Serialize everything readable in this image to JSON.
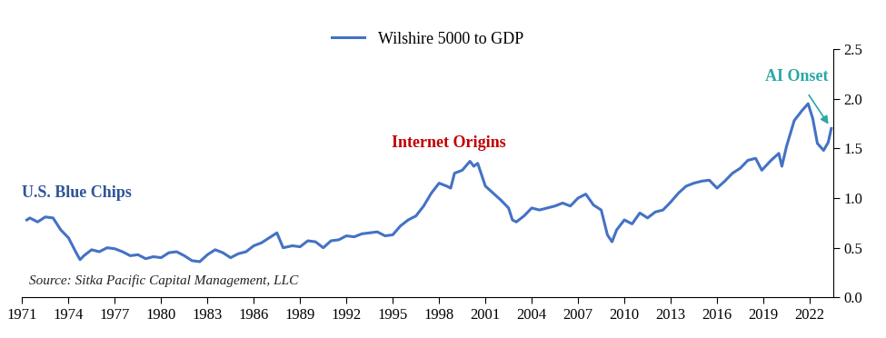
{
  "chart_data": {
    "type": "line",
    "annotations": [
      "U.S. Blue Chips",
      "Internet Origins",
      "AI Onset"
    ],
    "source": "Source: Sitka Pacific Capital Management, LLC",
    "x": [
      1971.3,
      1971.5,
      1972.0,
      1972.5,
      1973.0,
      1973.5,
      1974.0,
      1974.5,
      1974.75,
      1975.0,
      1975.5,
      1976.0,
      1976.5,
      1977.0,
      1977.5,
      1978.0,
      1978.5,
      1979.0,
      1979.5,
      1980.0,
      1980.5,
      1981.0,
      1981.5,
      1982.0,
      1982.5,
      1983.0,
      1983.5,
      1984.0,
      1984.5,
      1985.0,
      1985.5,
      1986.0,
      1986.5,
      1987.0,
      1987.5,
      1987.9,
      1988.5,
      1989.0,
      1989.5,
      1990.0,
      1990.5,
      1991.0,
      1991.5,
      1992.0,
      1992.5,
      1993.0,
      1993.5,
      1994.0,
      1994.5,
      1995.0,
      1995.5,
      1996.0,
      1996.5,
      1997.0,
      1997.5,
      1998.0,
      1998.5,
      1998.75,
      1999.0,
      1999.5,
      2000.0,
      2000.25,
      2000.5,
      2001.0,
      2001.5,
      2002.0,
      2002.5,
      2002.75,
      2003.0,
      2003.5,
      2004.0,
      2004.5,
      2005.0,
      2005.5,
      2006.0,
      2006.5,
      2007.0,
      2007.5,
      2008.0,
      2008.5,
      2008.9,
      2009.2,
      2009.5,
      2010.0,
      2010.5,
      2011.0,
      2011.5,
      2012.0,
      2012.5,
      2013.0,
      2013.5,
      2014.0,
      2014.5,
      2015.0,
      2015.5,
      2016.0,
      2016.5,
      2017.0,
      2017.5,
      2018.0,
      2018.5,
      2018.9,
      2019.5,
      2020.0,
      2020.2,
      2020.5,
      2021.0,
      2021.5,
      2021.9,
      2022.2,
      2022.5,
      2022.9,
      2023.2,
      2023.4
    ],
    "series": [
      {
        "name": "Wilshire 5000 to GDP",
        "color": "#4472c4",
        "values": [
          0.78,
          0.8,
          0.76,
          0.81,
          0.8,
          0.68,
          0.6,
          0.45,
          0.38,
          0.42,
          0.48,
          0.46,
          0.5,
          0.49,
          0.46,
          0.42,
          0.43,
          0.39,
          0.41,
          0.4,
          0.45,
          0.46,
          0.42,
          0.37,
          0.36,
          0.43,
          0.48,
          0.45,
          0.4,
          0.44,
          0.46,
          0.52,
          0.55,
          0.6,
          0.65,
          0.5,
          0.52,
          0.51,
          0.57,
          0.56,
          0.5,
          0.57,
          0.58,
          0.62,
          0.61,
          0.64,
          0.65,
          0.66,
          0.62,
          0.63,
          0.72,
          0.78,
          0.82,
          0.92,
          1.05,
          1.15,
          1.12,
          1.1,
          1.25,
          1.28,
          1.37,
          1.32,
          1.35,
          1.12,
          1.05,
          0.98,
          0.9,
          0.78,
          0.76,
          0.82,
          0.9,
          0.88,
          0.9,
          0.92,
          0.95,
          0.92,
          1.0,
          1.04,
          0.93,
          0.88,
          0.63,
          0.56,
          0.68,
          0.78,
          0.74,
          0.85,
          0.8,
          0.86,
          0.88,
          0.96,
          1.05,
          1.12,
          1.15,
          1.17,
          1.18,
          1.1,
          1.17,
          1.25,
          1.3,
          1.38,
          1.4,
          1.28,
          1.38,
          1.45,
          1.32,
          1.52,
          1.78,
          1.88,
          1.95,
          1.8,
          1.55,
          1.48,
          1.56,
          1.7
        ]
      }
    ],
    "xlim": [
      1971,
      2023.5
    ],
    "xticks": [
      1971,
      1974,
      1977,
      1980,
      1983,
      1986,
      1989,
      1992,
      1995,
      1998,
      2001,
      2004,
      2007,
      2010,
      2013,
      2016,
      2019,
      2022
    ],
    "ylim": [
      0.0,
      2.5
    ],
    "yticks": [
      0.0,
      0.5,
      1.0,
      1.5,
      2.0,
      2.5
    ],
    "grid": false,
    "legend": "upper center"
  }
}
